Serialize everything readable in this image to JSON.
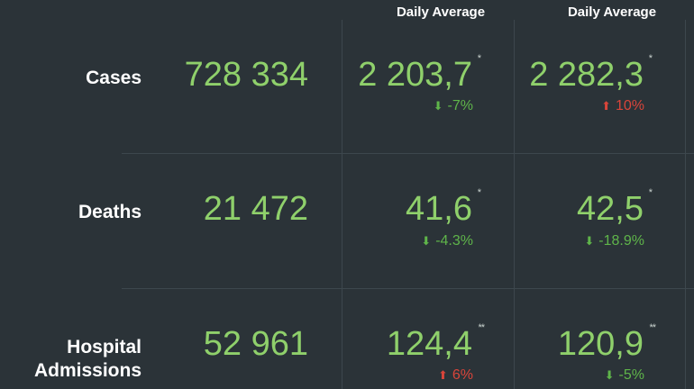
{
  "columns": {
    "col1_title": "Daily Average",
    "col2_title": "Daily Average"
  },
  "rows": [
    {
      "label": "Cases",
      "total": "728 334",
      "col1": {
        "value": "2 203,7",
        "mark": "*",
        "change": "-7%",
        "direction": "down",
        "arrow_icon": "arrow-down-icon"
      },
      "col2": {
        "value": "2 282,3",
        "mark": "*",
        "change": "10%",
        "direction": "up",
        "arrow_icon": "arrow-up-icon"
      }
    },
    {
      "label": "Deaths",
      "total": "21 472",
      "col1": {
        "value": "41,6",
        "mark": "*",
        "change": "-4.3%",
        "direction": "down",
        "arrow_icon": "arrow-down-icon"
      },
      "col2": {
        "value": "42,5",
        "mark": "*",
        "change": "-18.9%",
        "direction": "down",
        "arrow_icon": "arrow-down-icon"
      }
    },
    {
      "label_line1": "Hospital",
      "label_line2": "Admissions",
      "total": "52 961",
      "col1": {
        "value": "124,4",
        "mark": "**",
        "change": "6%",
        "direction": "up",
        "arrow_icon": "arrow-up-icon"
      },
      "col2": {
        "value": "120,9",
        "mark": "**",
        "change": "-5%",
        "direction": "down",
        "arrow_icon": "arrow-down-icon"
      }
    }
  ],
  "colors": {
    "background": "#2b3338",
    "value_green": "#8fd06b",
    "decrease_green": "#5fb54a",
    "increase_red": "#d9453a",
    "grid_line": "#3d474d"
  }
}
